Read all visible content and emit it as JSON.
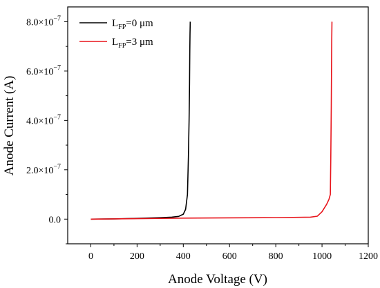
{
  "chart_data": {
    "type": "line",
    "xlabel": "Anode Voltage (V)",
    "ylabel": "Anode Current (A)",
    "xlim": [
      -100,
      1200
    ],
    "ylim": [
      -1e-07,
      8.6e-07
    ],
    "x_ticks": [
      0,
      200,
      400,
      600,
      800,
      1000,
      1200
    ],
    "x_tick_labels": [
      "0",
      "200",
      "400",
      "600",
      "800",
      "1000",
      "1200"
    ],
    "y_ticks": [
      0,
      2e-07,
      4e-07,
      6e-07,
      8e-07
    ],
    "y_tick_labels": [
      {
        "mant": "0.0",
        "exp": ""
      },
      {
        "mant": "2.0×10",
        "exp": "−7"
      },
      {
        "mant": "4.0×10",
        "exp": "−7"
      },
      {
        "mant": "6.0×10",
        "exp": "−7"
      },
      {
        "mant": "8.0×10",
        "exp": "−7"
      }
    ],
    "grid": false,
    "legend_position": "top-left",
    "series": [
      {
        "name_main": "L",
        "name_sub": "FP",
        "name_tail": "=0 μm",
        "color": "#000000",
        "x": [
          0,
          100,
          200,
          300,
          350,
          380,
          400,
          410,
          418,
          422,
          425,
          427,
          428,
          429,
          430
        ],
        "y": [
          0,
          1e-09,
          3e-09,
          6e-09,
          8e-09,
          1.1e-08,
          2e-08,
          4e-08,
          1e-07,
          2.5e-07,
          4e-07,
          5.5e-07,
          6.7e-07,
          7.5e-07,
          8e-07
        ]
      },
      {
        "name_main": "L",
        "name_sub": "FP",
        "name_tail": "=3 μm",
        "color": "#e8141b",
        "x": [
          0,
          200,
          400,
          600,
          800,
          950,
          980,
          1000,
          1020,
          1030,
          1036,
          1038,
          1040,
          1041,
          1042,
          1043
        ],
        "y": [
          0,
          2e-09,
          4e-09,
          5e-09,
          6e-09,
          8e-09,
          1.2e-08,
          3e-08,
          6e-08,
          8e-08,
          1e-07,
          2.5e-07,
          4.5e-07,
          6e-07,
          7.2e-07,
          8e-07
        ]
      }
    ]
  }
}
